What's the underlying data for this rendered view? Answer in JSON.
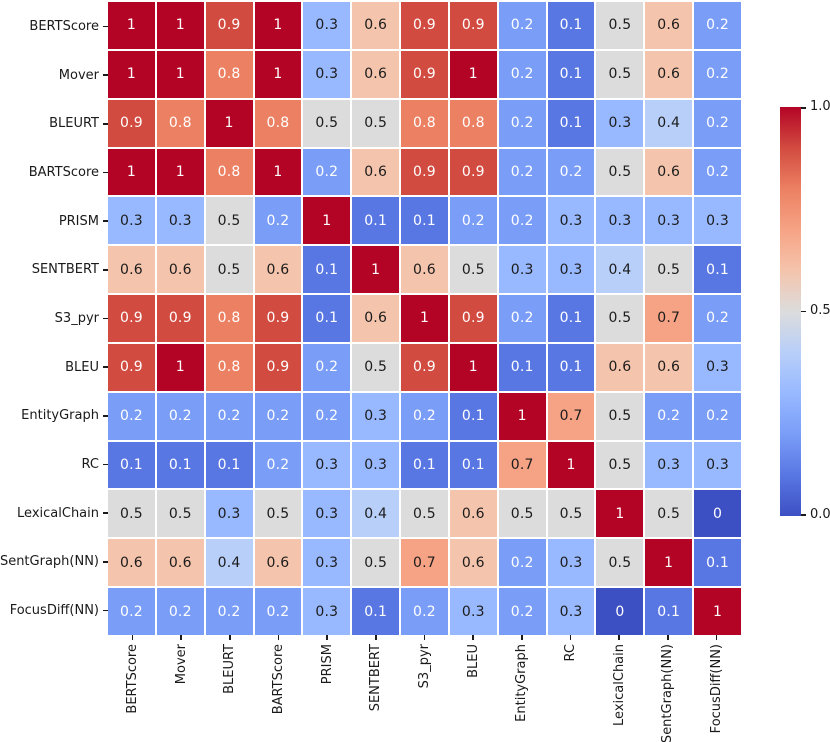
{
  "chart_data": {
    "type": "heatmap",
    "title": "",
    "xlabel": "",
    "ylabel": "",
    "colormap": "coolwarm",
    "value_range": [
      0,
      1
    ],
    "grid_line_color": "#ffffff",
    "categories": [
      "BERTScore",
      "Mover",
      "BLEURT",
      "BARTScore",
      "PRISM",
      "SENTBERT",
      "S3_pyr",
      "BLEU",
      "EntityGraph",
      "RC",
      "LexicalChain",
      "SentGraph(NN)",
      "FocusDiff(NN)"
    ],
    "matrix": [
      [
        1,
        1,
        0.9,
        1,
        0.3,
        0.6,
        0.9,
        0.9,
        0.2,
        0.1,
        0.5,
        0.6,
        0.2
      ],
      [
        1,
        1,
        0.8,
        1,
        0.3,
        0.6,
        0.9,
        1,
        0.2,
        0.1,
        0.5,
        0.6,
        0.2
      ],
      [
        0.9,
        0.8,
        1,
        0.8,
        0.5,
        0.5,
        0.8,
        0.8,
        0.2,
        0.1,
        0.3,
        0.4,
        0.2
      ],
      [
        1,
        1,
        0.8,
        1,
        0.2,
        0.6,
        0.9,
        0.9,
        0.2,
        0.2,
        0.5,
        0.6,
        0.2
      ],
      [
        0.3,
        0.3,
        0.5,
        0.2,
        1,
        0.1,
        0.1,
        0.2,
        0.2,
        0.3,
        0.3,
        0.3,
        0.3
      ],
      [
        0.6,
        0.6,
        0.5,
        0.6,
        0.1,
        1,
        0.6,
        0.5,
        0.3,
        0.3,
        0.4,
        0.5,
        0.1
      ],
      [
        0.9,
        0.9,
        0.8,
        0.9,
        0.1,
        0.6,
        1,
        0.9,
        0.2,
        0.1,
        0.5,
        0.7,
        0.2
      ],
      [
        0.9,
        1,
        0.8,
        0.9,
        0.2,
        0.5,
        0.9,
        1,
        0.1,
        0.1,
        0.6,
        0.6,
        0.3
      ],
      [
        0.2,
        0.2,
        0.2,
        0.2,
        0.2,
        0.3,
        0.2,
        0.1,
        1,
        0.7,
        0.5,
        0.2,
        0.2
      ],
      [
        0.1,
        0.1,
        0.1,
        0.2,
        0.3,
        0.3,
        0.1,
        0.1,
        0.7,
        1,
        0.5,
        0.3,
        0.3
      ],
      [
        0.5,
        0.5,
        0.3,
        0.5,
        0.3,
        0.4,
        0.5,
        0.6,
        0.5,
        0.5,
        1,
        0.5,
        0
      ],
      [
        0.6,
        0.6,
        0.4,
        0.6,
        0.3,
        0.5,
        0.7,
        0.6,
        0.2,
        0.3,
        0.5,
        1,
        0.1
      ],
      [
        0.2,
        0.2,
        0.2,
        0.2,
        0.3,
        0.1,
        0.2,
        0.3,
        0.2,
        0.3,
        0,
        0.1,
        1
      ]
    ],
    "value_colors": {
      "0": "#3d50c3",
      "0.1": "#5977e3",
      "0.2": "#7a9df8",
      "0.3": "#98b9ff",
      "0.4": "#b8cff9",
      "0.5": "#dcdcdc",
      "0.6": "#f5c4ac",
      "0.7": "#f6a385",
      "0.8": "#ec8062",
      "0.9": "#d24b40",
      "1": "#b40426"
    },
    "annotation_text_colors": {
      "light": "#ffffff",
      "dark": "#1c1c1c"
    },
    "annotation_white_when": "value <= 0.2 or value >= 0.8",
    "colorbar": {
      "orientation": "vertical",
      "ticks": [
        {
          "label": "1.0",
          "value": 1.0
        },
        {
          "label": "0.5",
          "value": 0.5
        },
        {
          "label": "0.0",
          "value": 0.0
        }
      ]
    }
  }
}
